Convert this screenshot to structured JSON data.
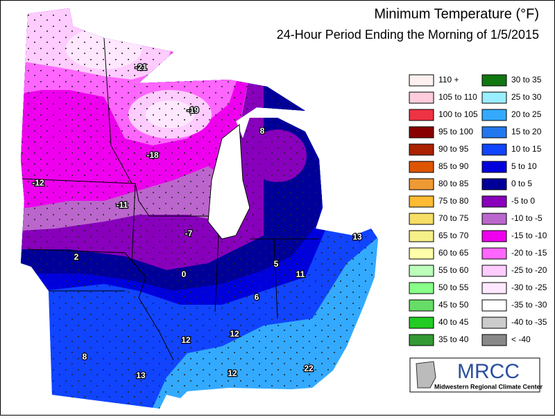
{
  "header": {
    "title": "Minimum Temperature (°F)",
    "subtitle": "24-Hour Period Ending the Morning of 1/5/2015"
  },
  "legend": [
    {
      "label": "110 +",
      "color": "#fff0f0"
    },
    {
      "label": "105 to 110",
      "color": "#ffccdd"
    },
    {
      "label": "100 to 105",
      "color": "#ee3344"
    },
    {
      "label": "95 to 100",
      "color": "#880000"
    },
    {
      "label": "90 to 95",
      "color": "#aa2200"
    },
    {
      "label": "85 to 90",
      "color": "#dd5500"
    },
    {
      "label": "80 to 85",
      "color": "#ee9933"
    },
    {
      "label": "75 to 80",
      "color": "#ffbb33"
    },
    {
      "label": "70 to 75",
      "color": "#f5dd66"
    },
    {
      "label": "65 to 70",
      "color": "#f5f088"
    },
    {
      "label": "60 to 65",
      "color": "#ffffaa"
    },
    {
      "label": "55 to 60",
      "color": "#bbffbb"
    },
    {
      "label": "50 to 55",
      "color": "#88ff88"
    },
    {
      "label": "45 to 50",
      "color": "#66dd66"
    },
    {
      "label": "40 to 45",
      "color": "#22cc22"
    },
    {
      "label": "35 to 40",
      "color": "#339933"
    },
    {
      "label": "30 to 35",
      "color": "#117711"
    },
    {
      "label": "25 to 30",
      "color": "#99eeff"
    },
    {
      "label": "20 to 25",
      "color": "#33aaff"
    },
    {
      "label": "15 to 20",
      "color": "#2277ee"
    },
    {
      "label": "10 to 15",
      "color": "#1144ff"
    },
    {
      "label": "5 to 10",
      "color": "#0000dd"
    },
    {
      "label": "0 to 5",
      "color": "#000099"
    },
    {
      "label": "-5 to 0",
      "color": "#8800bb"
    },
    {
      "label": "-10 to -5",
      "color": "#bb66cc"
    },
    {
      "label": "-15 to -10",
      "color": "#ee00ee"
    },
    {
      "label": "-20 to -15",
      "color": "#ff66ff"
    },
    {
      "label": "-25 to -20",
      "color": "#ffccff"
    },
    {
      "label": "-30 to -25",
      "color": "#ffe8ff"
    },
    {
      "label": "-35 to -30",
      "color": "#ffffff"
    },
    {
      "label": "-40 to -35",
      "color": "#cccccc"
    },
    {
      "label": "< -40",
      "color": "#888888"
    }
  ],
  "map_labels": [
    "-21",
    "-19",
    "8",
    "-18",
    "-12",
    "-11",
    "-7",
    "13",
    "2",
    "5",
    "0",
    "11",
    "6",
    "12",
    "12",
    "8",
    "13",
    "12",
    "22"
  ],
  "logo": {
    "name": "MRCC",
    "caption": "Midwestern Regional Climate Center"
  }
}
